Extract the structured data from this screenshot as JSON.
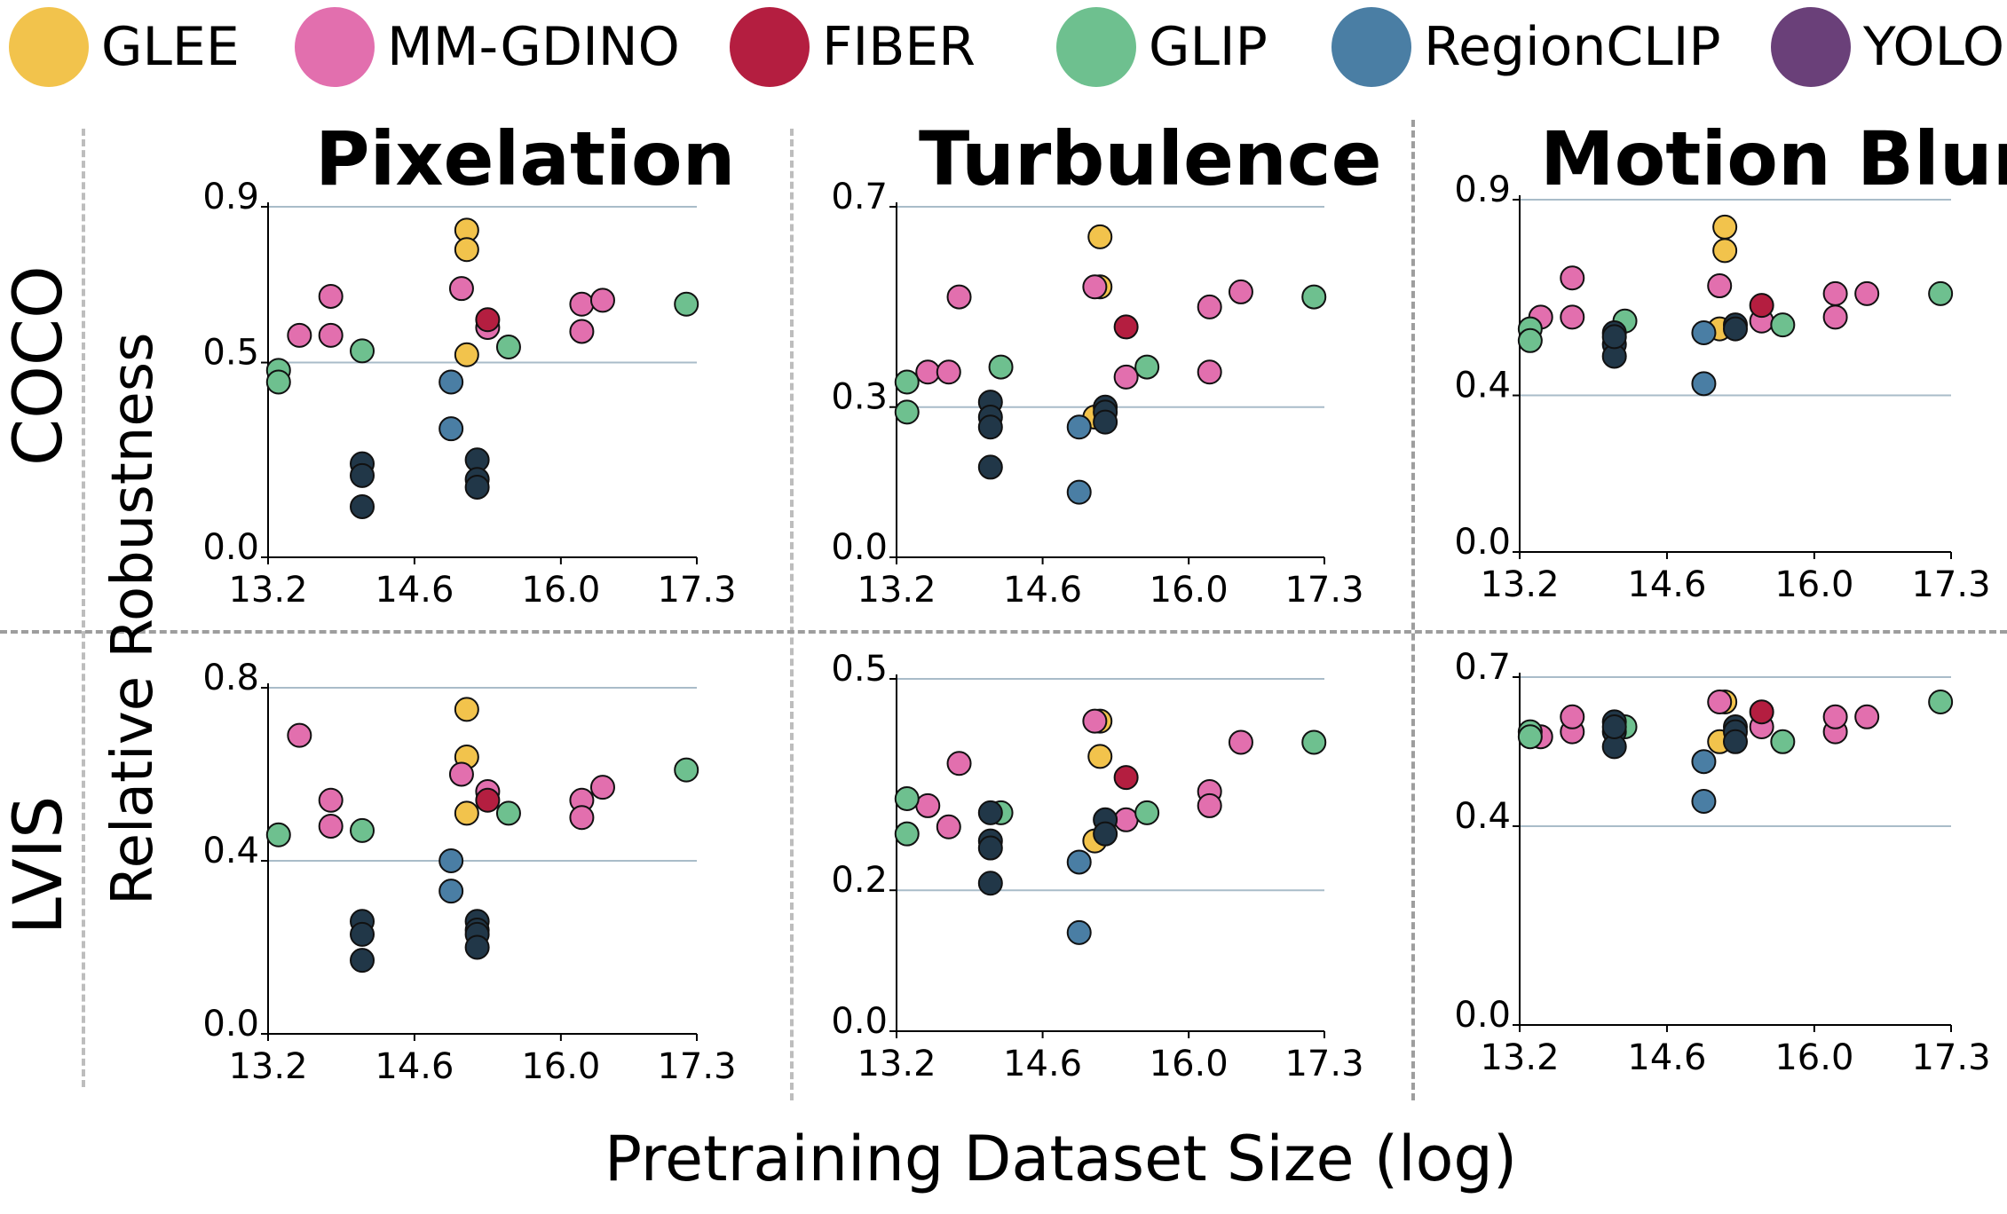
{
  "legend": [
    {
      "name": "GLEE",
      "color": "#f2c34c"
    },
    {
      "name": "MM-GDINO",
      "color": "#e26fae"
    },
    {
      "name": "FIBER",
      "color": "#b41e40"
    },
    {
      "name": "GLIP",
      "color": "#6ec08f"
    },
    {
      "name": "RegionCLIP",
      "color": "#4a7ea4"
    },
    {
      "name": "YOLO",
      "color": "#6a4079"
    }
  ],
  "labels": {
    "ylabel": "Relative Robustness",
    "xlabel": "Pretraining Dataset Size (log)",
    "row_coco": "COCO",
    "row_lvis": "LVIS"
  },
  "colors": {
    "GLEE": "#f2c34c",
    "MM-GDINO": "#e26fae",
    "FIBER": "#b41e40",
    "GLIP": "#6ec08f",
    "RegionCLIP": "#4a7ea4",
    "YOLO": "#213748",
    "grid": "#a9bcc9"
  },
  "chart_data": [
    {
      "type": "scatter",
      "title": "Pixelation",
      "row": "COCO",
      "xlim": [
        13.2,
        17.3
      ],
      "ylim": [
        0.0,
        0.9
      ],
      "xticks": [
        "13.2",
        "14.6",
        "16.0",
        "17.3"
      ],
      "yticks": [
        "0.0",
        "0.5",
        "0.9"
      ],
      "series": [
        {
          "name": "GLEE",
          "x": [
            15.1,
            15.1,
            15.1
          ],
          "y": [
            0.84,
            0.79,
            0.52
          ]
        },
        {
          "name": "MM-GDINO",
          "x": [
            13.5,
            13.8,
            13.8,
            15.05,
            15.3,
            16.2,
            16.2,
            16.4
          ],
          "y": [
            0.57,
            0.67,
            0.57,
            0.69,
            0.59,
            0.58,
            0.65,
            0.66
          ]
        },
        {
          "name": "FIBER",
          "x": [
            15.3
          ],
          "y": [
            0.61
          ]
        },
        {
          "name": "GLIP",
          "x": [
            13.3,
            13.3,
            14.1,
            15.5,
            17.2
          ],
          "y": [
            0.48,
            0.45,
            0.53,
            0.54,
            0.65
          ]
        },
        {
          "name": "RegionCLIP",
          "x": [
            14.95,
            14.95
          ],
          "y": [
            0.45,
            0.33
          ]
        },
        {
          "name": "YOLO",
          "x": [
            14.1,
            14.1,
            14.1,
            15.2,
            15.2,
            15.2
          ],
          "y": [
            0.24,
            0.21,
            0.13,
            0.25,
            0.2,
            0.18
          ]
        }
      ]
    },
    {
      "type": "scatter",
      "title": "Turbulence",
      "row": "COCO",
      "xlim": [
        13.2,
        17.3
      ],
      "ylim": [
        0.0,
        0.7
      ],
      "xticks": [
        "13.2",
        "14.6",
        "16.0",
        "17.3"
      ],
      "yticks": [
        "0.0",
        "0.3",
        "0.7"
      ],
      "series": [
        {
          "name": "GLEE",
          "x": [
            15.15,
            15.15,
            15.1
          ],
          "y": [
            0.64,
            0.54,
            0.28
          ]
        },
        {
          "name": "MM-GDINO",
          "x": [
            13.5,
            13.7,
            13.8,
            15.1,
            15.4,
            16.2,
            16.2,
            16.5
          ],
          "y": [
            0.37,
            0.37,
            0.52,
            0.54,
            0.36,
            0.37,
            0.5,
            0.53
          ]
        },
        {
          "name": "FIBER",
          "x": [
            15.4
          ],
          "y": [
            0.46
          ]
        },
        {
          "name": "GLIP",
          "x": [
            13.3,
            13.3,
            14.2,
            15.6,
            17.2
          ],
          "y": [
            0.35,
            0.29,
            0.38,
            0.38,
            0.52
          ]
        },
        {
          "name": "RegionCLIP",
          "x": [
            14.95,
            14.95
          ],
          "y": [
            0.26,
            0.13
          ]
        },
        {
          "name": "YOLO",
          "x": [
            14.1,
            14.1,
            14.1,
            14.1,
            15.2,
            15.2,
            15.2
          ],
          "y": [
            0.31,
            0.28,
            0.26,
            0.18,
            0.3,
            0.29,
            0.27
          ]
        }
      ]
    },
    {
      "type": "scatter",
      "title": "Motion Blur",
      "row": "COCO",
      "xlim": [
        13.2,
        17.3
      ],
      "ylim": [
        0.0,
        0.9
      ],
      "xticks": [
        "13.2",
        "14.6",
        "16.0",
        "17.3"
      ],
      "yticks": [
        "0.0",
        "0.4",
        "0.9"
      ],
      "series": [
        {
          "name": "GLEE",
          "x": [
            15.15,
            15.15,
            15.1
          ],
          "y": [
            0.83,
            0.77,
            0.57
          ]
        },
        {
          "name": "MM-GDINO",
          "x": [
            13.4,
            13.7,
            13.7,
            15.1,
            15.5,
            16.2,
            16.2,
            16.5
          ],
          "y": [
            0.6,
            0.6,
            0.7,
            0.68,
            0.59,
            0.6,
            0.66,
            0.66
          ]
        },
        {
          "name": "FIBER",
          "x": [
            15.5
          ],
          "y": [
            0.63
          ]
        },
        {
          "name": "GLIP",
          "x": [
            13.3,
            13.3,
            14.2,
            15.7,
            17.2
          ],
          "y": [
            0.57,
            0.54,
            0.59,
            0.58,
            0.66
          ]
        },
        {
          "name": "RegionCLIP",
          "x": [
            14.95,
            14.95
          ],
          "y": [
            0.56,
            0.43
          ]
        },
        {
          "name": "YOLO",
          "x": [
            14.1,
            14.1,
            14.1,
            14.1,
            15.25,
            15.25
          ],
          "y": [
            0.56,
            0.53,
            0.5,
            0.55,
            0.58,
            0.57
          ]
        }
      ]
    },
    {
      "type": "scatter",
      "title": "",
      "row": "LVIS",
      "xlim": [
        13.2,
        17.3
      ],
      "ylim": [
        0.0,
        0.8
      ],
      "xticks": [
        "13.2",
        "14.6",
        "16.0",
        "17.3"
      ],
      "yticks": [
        "0.0",
        "0.4",
        "0.8"
      ],
      "series": [
        {
          "name": "GLEE",
          "x": [
            15.1,
            15.1,
            15.1
          ],
          "y": [
            0.75,
            0.64,
            0.51
          ]
        },
        {
          "name": "MM-GDINO",
          "x": [
            13.5,
            13.8,
            13.8,
            15.05,
            15.3,
            16.2,
            16.2,
            16.4
          ],
          "y": [
            0.69,
            0.54,
            0.48,
            0.6,
            0.56,
            0.54,
            0.5,
            0.57
          ]
        },
        {
          "name": "FIBER",
          "x": [
            15.3
          ],
          "y": [
            0.54
          ]
        },
        {
          "name": "GLIP",
          "x": [
            13.3,
            14.1,
            15.5,
            17.2
          ],
          "y": [
            0.46,
            0.47,
            0.51,
            0.61
          ]
        },
        {
          "name": "RegionCLIP",
          "x": [
            14.95,
            14.95
          ],
          "y": [
            0.4,
            0.33
          ]
        },
        {
          "name": "YOLO",
          "x": [
            14.1,
            14.1,
            14.1,
            15.2,
            15.2,
            15.2,
            15.2
          ],
          "y": [
            0.26,
            0.23,
            0.17,
            0.26,
            0.24,
            0.23,
            0.2
          ]
        }
      ]
    },
    {
      "type": "scatter",
      "title": "",
      "row": "LVIS",
      "xlim": [
        13.2,
        17.3
      ],
      "ylim": [
        0.0,
        0.5
      ],
      "xticks": [
        "13.2",
        "14.6",
        "16.0",
        "17.3"
      ],
      "yticks": [
        "0.0",
        "0.2",
        "0.5"
      ],
      "series": [
        {
          "name": "GLEE",
          "x": [
            15.15,
            15.15,
            15.1
          ],
          "y": [
            0.44,
            0.39,
            0.27
          ]
        },
        {
          "name": "MM-GDINO",
          "x": [
            13.5,
            13.7,
            13.8,
            15.1,
            15.4,
            16.2,
            16.2,
            16.5
          ],
          "y": [
            0.32,
            0.29,
            0.38,
            0.44,
            0.3,
            0.34,
            0.32,
            0.41
          ]
        },
        {
          "name": "FIBER",
          "x": [
            15.4
          ],
          "y": [
            0.36
          ]
        },
        {
          "name": "GLIP",
          "x": [
            13.3,
            13.3,
            14.2,
            15.6,
            17.2
          ],
          "y": [
            0.33,
            0.28,
            0.31,
            0.31,
            0.41
          ]
        },
        {
          "name": "RegionCLIP",
          "x": [
            14.95,
            14.95
          ],
          "y": [
            0.24,
            0.14
          ]
        },
        {
          "name": "YOLO",
          "x": [
            14.1,
            14.1,
            14.1,
            14.1,
            15.2,
            15.2
          ],
          "y": [
            0.31,
            0.27,
            0.26,
            0.21,
            0.3,
            0.28
          ]
        }
      ]
    },
    {
      "type": "scatter",
      "title": "",
      "row": "LVIS",
      "xlim": [
        13.2,
        17.3
      ],
      "ylim": [
        0.0,
        0.7
      ],
      "xticks": [
        "13.2",
        "14.6",
        "16.0",
        "17.3"
      ],
      "yticks": [
        "0.0",
        "0.4",
        "0.7"
      ],
      "series": [
        {
          "name": "GLEE",
          "x": [
            15.15,
            15.1
          ],
          "y": [
            0.65,
            0.57
          ]
        },
        {
          "name": "MM-GDINO",
          "x": [
            13.4,
            13.7,
            13.7,
            15.1,
            15.5,
            16.2,
            16.2,
            16.5
          ],
          "y": [
            0.58,
            0.59,
            0.62,
            0.65,
            0.6,
            0.59,
            0.62,
            0.62
          ]
        },
        {
          "name": "FIBER",
          "x": [
            15.5
          ],
          "y": [
            0.63
          ]
        },
        {
          "name": "GLIP",
          "x": [
            13.3,
            13.3,
            14.2,
            15.7,
            17.2
          ],
          "y": [
            0.59,
            0.58,
            0.6,
            0.57,
            0.65
          ]
        },
        {
          "name": "RegionCLIP",
          "x": [
            14.95,
            14.95
          ],
          "y": [
            0.53,
            0.45
          ]
        },
        {
          "name": "YOLO",
          "x": [
            14.1,
            14.1,
            14.1,
            14.1,
            15.25,
            15.25,
            15.25
          ],
          "y": [
            0.61,
            0.59,
            0.56,
            0.6,
            0.6,
            0.59,
            0.57
          ]
        }
      ]
    }
  ]
}
